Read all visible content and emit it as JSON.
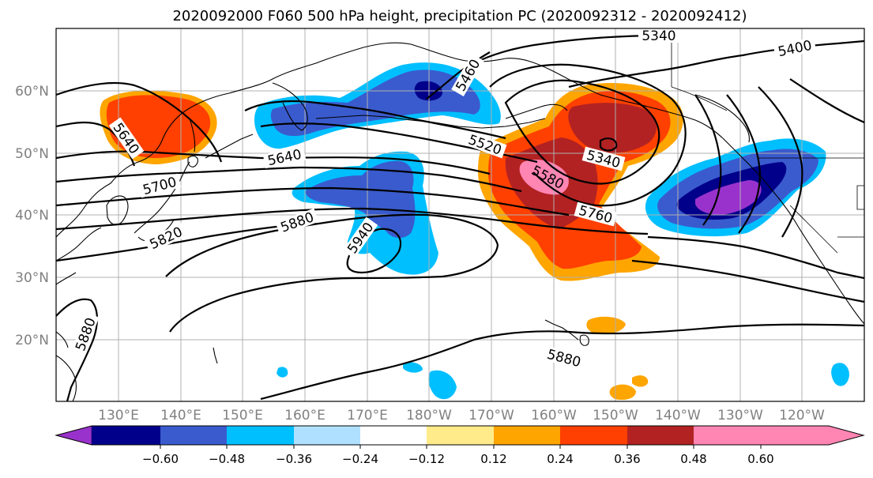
{
  "title": "2020092000 F060 500 hPa height, precipitation PC (2020092312 - 2020092412)",
  "lat_labels": [
    "60°N",
    "50°N",
    "40°N",
    "30°N",
    "20°N"
  ],
  "lon_labels": [
    "130°E",
    "140°E",
    "150°E",
    "160°E",
    "170°E",
    "180°W",
    "170°W",
    "160°W",
    "150°W",
    "140°W",
    "130°W",
    "120°W"
  ],
  "contour_labels": [
    "5340",
    "5400",
    "5460",
    "5520",
    "5580",
    "5340",
    "5640",
    "5640",
    "5700",
    "5760",
    "5820",
    "5880",
    "5940",
    "5880",
    "5880"
  ],
  "colorbar": {
    "ticks": [
      "−0.60",
      "−0.48",
      "−0.36",
      "−0.24",
      "−0.12",
      "0.12",
      "0.24",
      "0.36",
      "0.48",
      "0.60"
    ],
    "colors": [
      "#9932CC",
      "#00008B",
      "#3A5BCD",
      "#00BFFF",
      "#B0E0FF",
      "#FFFFFF",
      "#FFEB8A",
      "#FFA500",
      "#FF4000",
      "#B22222",
      "#FF85B3"
    ]
  }
}
